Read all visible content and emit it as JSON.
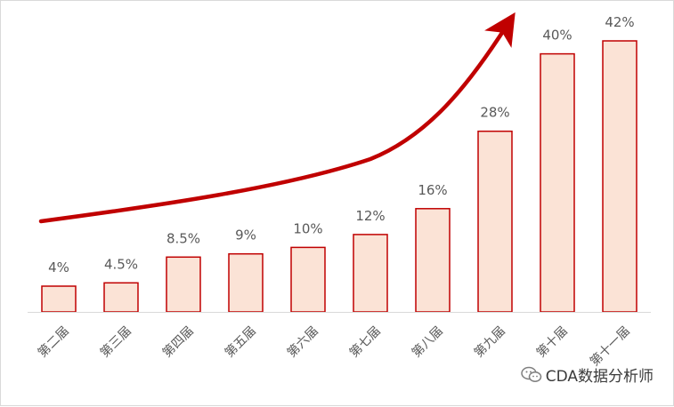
{
  "chart_data": {
    "type": "bar",
    "categories": [
      "第二届",
      "第三届",
      "第四届",
      "第五届",
      "第六届",
      "第七届",
      "第八届",
      "第九届",
      "第十届",
      "第十一届"
    ],
    "values": [
      4,
      4.5,
      8.5,
      9,
      10,
      12,
      16,
      28,
      40,
      42
    ],
    "value_labels": [
      "4%",
      "4.5%",
      "8.5%",
      "9%",
      "10%",
      "12%",
      "16%",
      "28%",
      "40%",
      "42%"
    ],
    "ylim": [
      0,
      46
    ],
    "grid": false,
    "legend": "none",
    "trend_arrow": true
  },
  "colors": {
    "bar_fill": "#fbe3d6",
    "bar_stroke": "#c00000",
    "arrow": "#c00000",
    "axis": "#d9d9d9",
    "text": "#595959"
  },
  "watermark": {
    "text": "CDA数据分析师",
    "icon": "wechat-icon"
  }
}
